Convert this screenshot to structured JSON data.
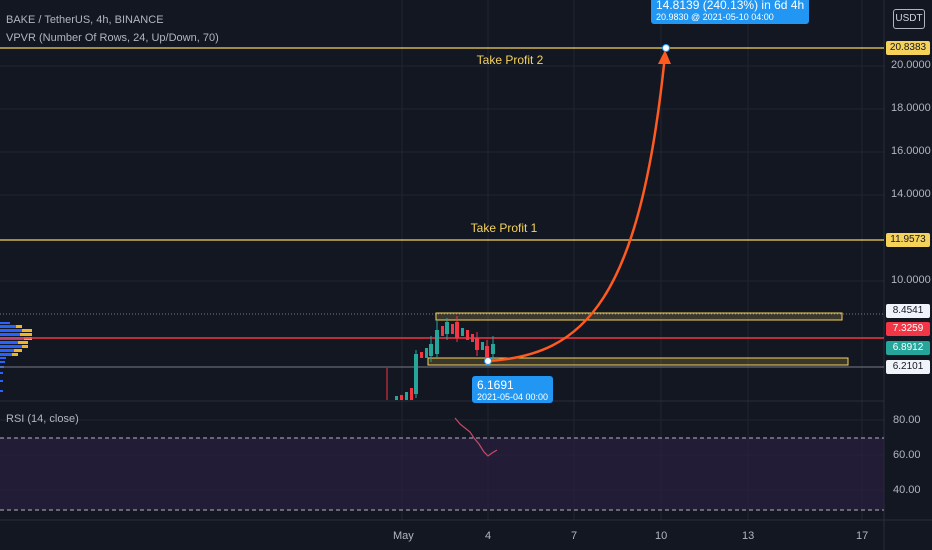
{
  "header": {
    "symbol_line": "BAKE / TetherUS, 4h, BINANCE",
    "indicator_line": "VPVR (Number Of Rows, 24, Up/Down, 70)",
    "currency_button": "USDT"
  },
  "price_axis": {
    "ticks": [
      "20.0000",
      "18.0000",
      "16.0000",
      "14.0000",
      "10.0000"
    ],
    "tags": {
      "tp2": "20.8383",
      "tp1": "11.9573",
      "upper": "8.4541",
      "current": "7.3259",
      "last": "6.8912",
      "lower": "6.2101"
    }
  },
  "levels": {
    "tp2_label": "Take Profit 2",
    "tp1_label": "Take Profit 1"
  },
  "projection": {
    "target_main": "14.8139 (240.13%) in 6d 4h",
    "target_sub": "20.9830 @ 2021-05-10  04:00",
    "start_main": "6.1691",
    "start_sub": "2021-05-04 00:00"
  },
  "time_axis": {
    "labels": [
      "May",
      "4",
      "7",
      "10",
      "13",
      "17"
    ]
  },
  "rsi": {
    "label": "RSI (14, close)",
    "ticks": [
      "80.00",
      "60.00",
      "40.00"
    ]
  },
  "colors": {
    "background": "#131722",
    "tp_line": "#f5d35a",
    "current_line": "#f23645",
    "projection_arrow": "#ff5a1f",
    "tooltip": "#2196f3",
    "last_price": "#26a69a",
    "rsi_line": "#c74a6a",
    "rsi_band": "#2a1f3d"
  }
}
